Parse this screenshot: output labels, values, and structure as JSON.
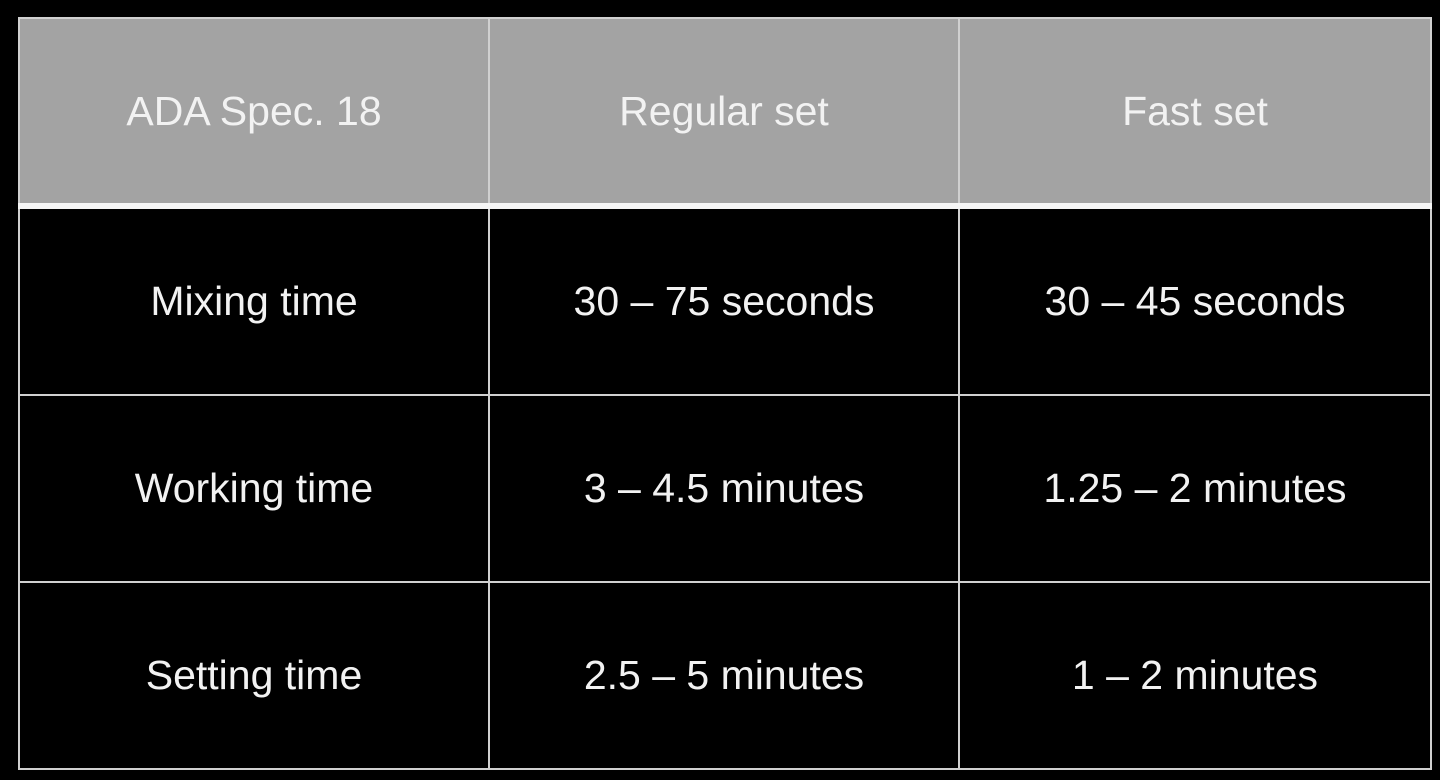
{
  "table": {
    "headers": [
      "ADA Spec. 18",
      "Regular set",
      "Fast set"
    ],
    "rows": [
      [
        "Mixing time",
        "30 – 75 seconds",
        "30 – 45 seconds"
      ],
      [
        "Working time",
        "3 – 4.5 minutes",
        "1.25 – 2 minutes"
      ],
      [
        "Setting time",
        "2.5 – 5 minutes",
        "1 – 2 minutes"
      ]
    ]
  },
  "colors": {
    "header_bg": "#a3a3a3",
    "body_bg": "#000000",
    "text": "#f2f2f2",
    "border": "#d0d0d0"
  }
}
